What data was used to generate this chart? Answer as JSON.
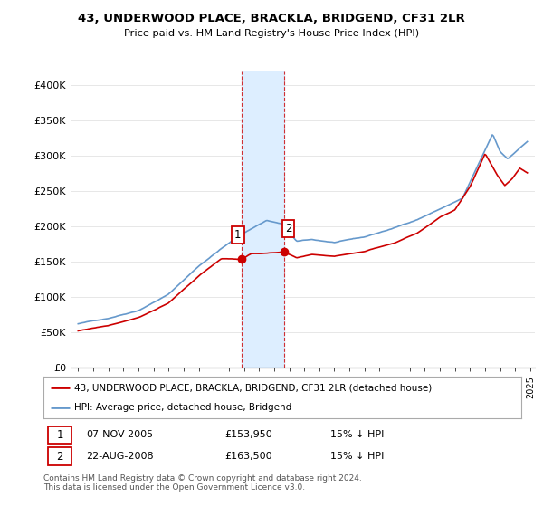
{
  "title": "43, UNDERWOOD PLACE, BRACKLA, BRIDGEND, CF31 2LR",
  "subtitle": "Price paid vs. HM Land Registry's House Price Index (HPI)",
  "legend_line1": "43, UNDERWOOD PLACE, BRACKLA, BRIDGEND, CF31 2LR (detached house)",
  "legend_line2": "HPI: Average price, detached house, Bridgend",
  "transaction1_date": "07-NOV-2005",
  "transaction1_price": "£153,950",
  "transaction1_hpi": "15% ↓ HPI",
  "transaction2_date": "22-AUG-2008",
  "transaction2_price": "£163,500",
  "transaction2_hpi": "15% ↓ HPI",
  "footnote": "Contains HM Land Registry data © Crown copyright and database right 2024.\nThis data is licensed under the Open Government Licence v3.0.",
  "price_color": "#cc0000",
  "hpi_color": "#6699cc",
  "shading_color": "#ddeeff",
  "ylim_min": 0,
  "ylim_max": 420000,
  "yticks": [
    0,
    50000,
    100000,
    150000,
    200000,
    250000,
    300000,
    350000,
    400000
  ],
  "ytick_labels": [
    "£0",
    "£50K",
    "£100K",
    "£150K",
    "£200K",
    "£250K",
    "£300K",
    "£350K",
    "£400K"
  ],
  "background_color": "#ffffff",
  "hpi_anchors_t": [
    1995.0,
    1997.0,
    1999.0,
    2001.0,
    2003.0,
    2004.5,
    2006.0,
    2007.5,
    2008.5,
    2009.5,
    2010.5,
    2012.0,
    2014.0,
    2016.0,
    2017.5,
    2019.0,
    2020.5,
    2021.5,
    2022.5,
    2023.0,
    2023.5,
    2024.0,
    2024.8
  ],
  "hpi_anchors_v": [
    62000,
    70000,
    82000,
    105000,
    145000,
    170000,
    192000,
    210000,
    205000,
    180000,
    182000,
    178000,
    185000,
    198000,
    210000,
    225000,
    240000,
    285000,
    330000,
    305000,
    295000,
    305000,
    320000
  ],
  "price_anchors_t": [
    1995.0,
    1997.0,
    1999.0,
    2001.0,
    2003.0,
    2004.5,
    2005.85,
    2006.5,
    2008.64,
    2009.5,
    2010.5,
    2012.0,
    2014.0,
    2016.0,
    2017.5,
    2019.0,
    2020.0,
    2021.0,
    2022.0,
    2022.8,
    2023.3,
    2023.8,
    2024.3,
    2024.8
  ],
  "price_anchors_v": [
    52000,
    60000,
    72000,
    92000,
    130000,
    155000,
    153950,
    162000,
    163500,
    155000,
    160000,
    158000,
    165000,
    178000,
    192000,
    215000,
    225000,
    258000,
    305000,
    275000,
    260000,
    270000,
    285000,
    278000
  ]
}
